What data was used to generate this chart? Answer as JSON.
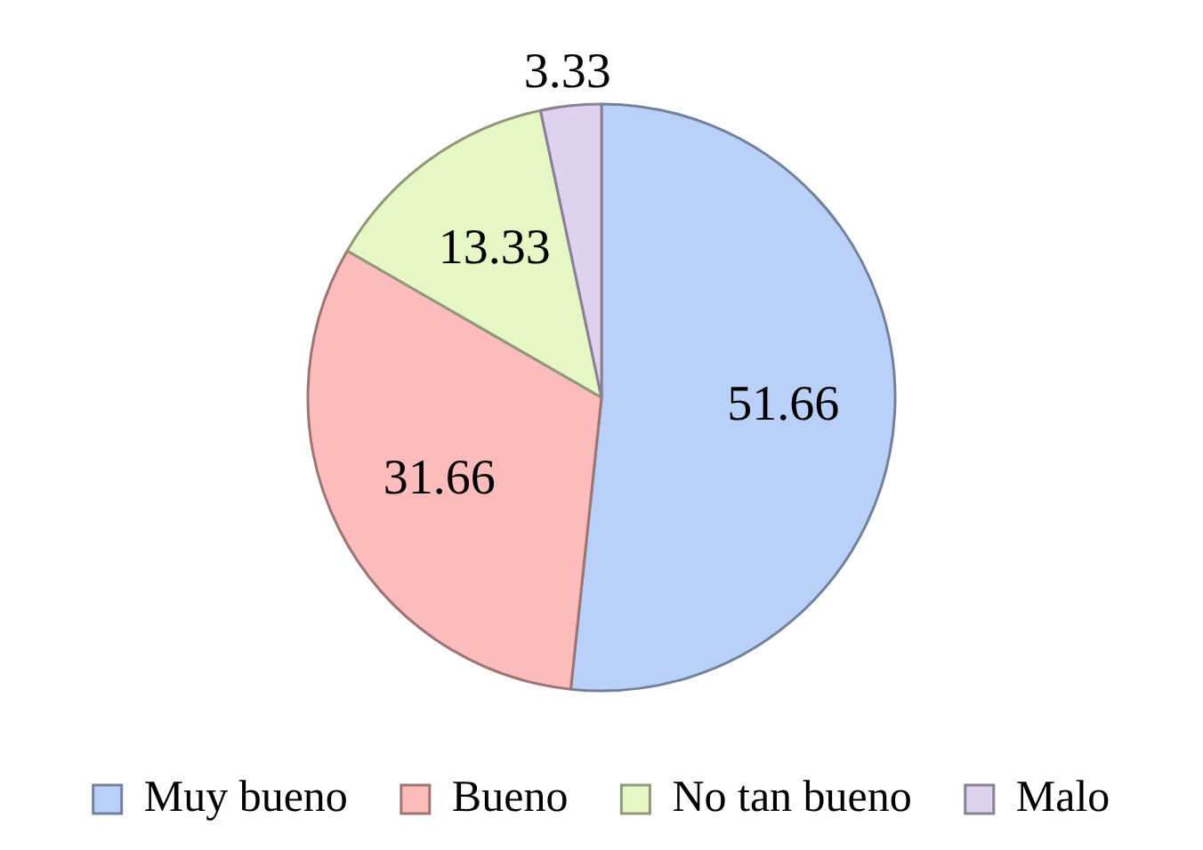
{
  "chart_data": {
    "type": "pie",
    "categories": [
      "Muy bueno",
      "Bueno",
      "No tan bueno",
      "Malo"
    ],
    "values": [
      51.66,
      31.66,
      13.33,
      3.33
    ],
    "colors": [
      "#b9d1f9",
      "#fbbcbb",
      "#e6f6c4",
      "#ded2ef"
    ],
    "data_labels": true,
    "legend": "bottom"
  }
}
